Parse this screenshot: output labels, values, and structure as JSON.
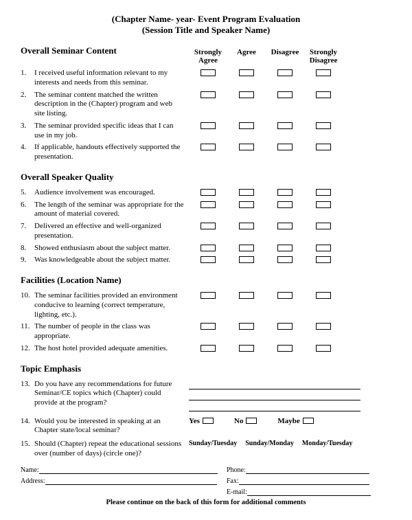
{
  "header": {
    "line1": "(Chapter Name- year- Event Program Evaluation",
    "line2": "(Session Title and Speaker Name)"
  },
  "rating_headers": [
    "Strongly Agree",
    "Agree",
    "Disagree",
    "Strongly Disagree"
  ],
  "sections": {
    "content": {
      "title": "Overall Seminar Content",
      "questions": [
        {
          "num": "1.",
          "text": "I received useful information relevant to my interests and needs from this seminar."
        },
        {
          "num": "2.",
          "text": "The seminar content matched the written description in the (Chapter) program and web site listing."
        },
        {
          "num": "3.",
          "text": "The seminar provided specific ideas that I can use in my job."
        },
        {
          "num": "4.",
          "text": "If applicable, handouts effectively supported the presentation."
        }
      ]
    },
    "speaker": {
      "title": "Overall Speaker Quality",
      "questions": [
        {
          "num": "5.",
          "text": "Audience involvement was encouraged."
        },
        {
          "num": "6.",
          "text": "The length of the seminar was appropriate for the amount of material covered."
        },
        {
          "num": "7.",
          "text": "Delivered an effective and well-organized presentation."
        },
        {
          "num": "8.",
          "text": "Showed enthusiasm about the subject matter."
        },
        {
          "num": "9.",
          "text": "Was knowledgeable about the subject matter."
        }
      ]
    },
    "facilities": {
      "title": "Facilities (Location Name)",
      "questions": [
        {
          "num": "10.",
          "text": "The seminar facilities provided an environment conducive to learning (correct temperature, lighting, etc.)."
        },
        {
          "num": "11.",
          "text": "The number of people in the class was appropriate."
        },
        {
          "num": "12.",
          "text": "The host hotel provided adequate amenities."
        }
      ]
    },
    "topic": {
      "title": "Topic Emphasis",
      "q13": {
        "num": "13.",
        "text": "Do you have any recommendations for future Seminar/CE topics which (Chapter) could provide at the program?"
      },
      "q14": {
        "num": "14.",
        "text": "Would you be interested in speaking at an Chapter state/local seminar?"
      },
      "q15": {
        "num": "15.",
        "text": "Should (Chapter) repeat the educational sessions over (number of days) (circle one)?"
      }
    }
  },
  "yes_no": {
    "yes": "Yes",
    "no": "No",
    "maybe": "Maybe"
  },
  "days": [
    "Sunday/Tuesday",
    "Sunday/Monday",
    "Monday/Tuesday"
  ],
  "contact": {
    "name": "Name:",
    "phone": "Phone:",
    "address": "Address:",
    "fax": "Fax:",
    "email": "E-mail:"
  },
  "footer": "Please continue on the back of this form for additional comments"
}
